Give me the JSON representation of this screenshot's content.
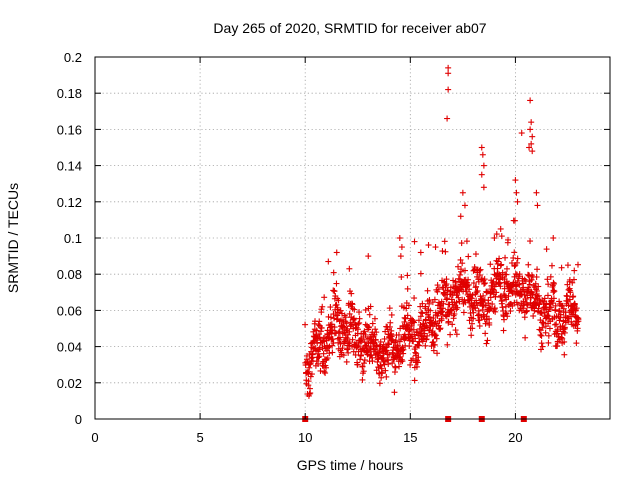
{
  "chart_data": {
    "type": "scatter",
    "title": "Day 265 of 2020, SRMTID for receiver ab07",
    "xlabel": "GPS time / hours",
    "ylabel": "SRMTID / TECUs",
    "xlim": [
      0,
      24.5
    ],
    "ylim": [
      0,
      0.2
    ],
    "xticks": [
      "0",
      "5",
      "10",
      "15",
      "20"
    ],
    "yticks": [
      "0",
      "0.02",
      "0.04",
      "0.06",
      "0.08",
      "0.1",
      "0.12",
      "0.14",
      "0.16",
      "0.18",
      "0.2"
    ],
    "grid": true,
    "marker": "+",
    "color": "#e00000",
    "series": [
      {
        "name": "SRMTID",
        "trend": [
          [
            10.0,
            0.03
          ],
          [
            10.5,
            0.036
          ],
          [
            11.0,
            0.045
          ],
          [
            11.5,
            0.052
          ],
          [
            12.0,
            0.05
          ],
          [
            12.5,
            0.045
          ],
          [
            13.0,
            0.042
          ],
          [
            13.5,
            0.04
          ],
          [
            14.0,
            0.038
          ],
          [
            14.5,
            0.043
          ],
          [
            15.0,
            0.045
          ],
          [
            15.5,
            0.05
          ],
          [
            16.0,
            0.055
          ],
          [
            16.5,
            0.06
          ],
          [
            17.0,
            0.065
          ],
          [
            17.5,
            0.072
          ],
          [
            18.0,
            0.068
          ],
          [
            18.5,
            0.065
          ],
          [
            19.0,
            0.07
          ],
          [
            19.5,
            0.075
          ],
          [
            20.0,
            0.07
          ],
          [
            20.5,
            0.072
          ],
          [
            21.0,
            0.065
          ],
          [
            21.5,
            0.058
          ],
          [
            22.0,
            0.055
          ],
          [
            22.5,
            0.058
          ],
          [
            23.0,
            0.06
          ]
        ],
        "spread": 0.011,
        "n_points": 1300,
        "outliers": [
          [
            16.8,
            0.194
          ],
          [
            16.8,
            0.191
          ],
          [
            16.8,
            0.182
          ],
          [
            16.75,
            0.166
          ],
          [
            18.4,
            0.15
          ],
          [
            18.45,
            0.146
          ],
          [
            18.5,
            0.14
          ],
          [
            18.4,
            0.135
          ],
          [
            18.5,
            0.128
          ],
          [
            20.3,
            0.158
          ],
          [
            20.7,
            0.176
          ],
          [
            20.75,
            0.164
          ],
          [
            20.7,
            0.16
          ],
          [
            20.8,
            0.156
          ],
          [
            20.75,
            0.152
          ],
          [
            20.8,
            0.148
          ],
          [
            20.65,
            0.15
          ],
          [
            17.5,
            0.125
          ],
          [
            17.6,
            0.118
          ],
          [
            17.4,
            0.112
          ],
          [
            20.0,
            0.132
          ],
          [
            20.05,
            0.125
          ],
          [
            20.1,
            0.12
          ],
          [
            21.0,
            0.125
          ],
          [
            21.05,
            0.118
          ],
          [
            14.5,
            0.1
          ],
          [
            14.6,
            0.095
          ],
          [
            14.55,
            0.09
          ],
          [
            11.5,
            0.092
          ],
          [
            11.1,
            0.087
          ],
          [
            13.0,
            0.09
          ],
          [
            12.1,
            0.083
          ],
          [
            15.2,
            0.098
          ],
          [
            15.5,
            0.092
          ],
          [
            16.2,
            0.095
          ],
          [
            19.0,
            0.1
          ],
          [
            19.3,
            0.105
          ],
          [
            21.8,
            0.1
          ],
          [
            22.5,
            0.085
          ],
          [
            22.8,
            0.082
          ]
        ]
      }
    ],
    "rug_x": [
      10.0,
      16.8,
      18.4,
      20.4
    ]
  }
}
